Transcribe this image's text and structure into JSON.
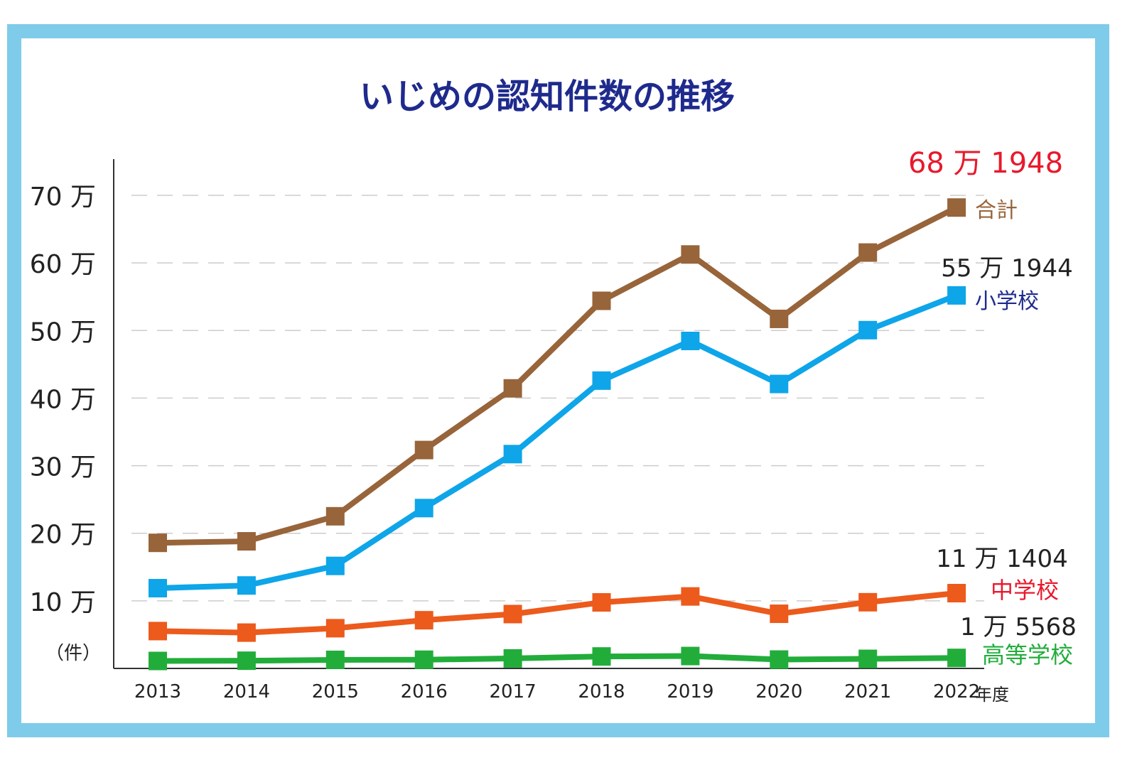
{
  "chart_data": {
    "type": "line",
    "title": "いじめの認知件数の推移",
    "unit_label": "（件）",
    "x_unit": "年度",
    "categories": [
      "2013",
      "2014",
      "2015",
      "2016",
      "2017",
      "2018",
      "2019",
      "2020",
      "2021",
      "2022"
    ],
    "yticks": [
      "10 万",
      "20 万",
      "30 万",
      "40 万",
      "50 万",
      "60 万",
      "70 万"
    ],
    "ylim": [
      0,
      740000
    ],
    "grid": true,
    "series": [
      {
        "name": "合計",
        "color": "#98643a",
        "label_color": "#98643a",
        "values": [
          185803,
          188072,
          225132,
          323143,
          414378,
          543933,
          612496,
          517163,
          615351,
          681948
        ],
        "end_value": "68 万 1948",
        "end_value_color": "#e8192c"
      },
      {
        "name": "小学校",
        "color": "#0ea5e9",
        "label_color": "#1e2a8c",
        "values": [
          118748,
          122734,
          151692,
          237256,
          317121,
          425844,
          484545,
          420897,
          500562,
          551944
        ],
        "end_value": "55 万 1944",
        "end_value_color": "#222222"
      },
      {
        "name": "中学校",
        "color": "#ec5a1c",
        "label_color": "#e8192c",
        "values": [
          55248,
          52971,
          59502,
          71309,
          80424,
          97704,
          106524,
          80877,
          97937,
          111404
        ],
        "end_value": "11 万 1404",
        "end_value_color": "#222222"
      },
      {
        "name": "高等学校",
        "color": "#22ad3b",
        "label_color": "#22ad3b",
        "values": [
          11039,
          11404,
          12664,
          12874,
          14789,
          17709,
          18352,
          13126,
          14157,
          15568
        ],
        "end_value": "1 万 5568",
        "end_value_color": "#222222"
      }
    ]
  },
  "colors": {
    "border": "#7fcbea",
    "title": "#1e2a8c",
    "grid": "#cccccc",
    "axis": "#333333"
  }
}
